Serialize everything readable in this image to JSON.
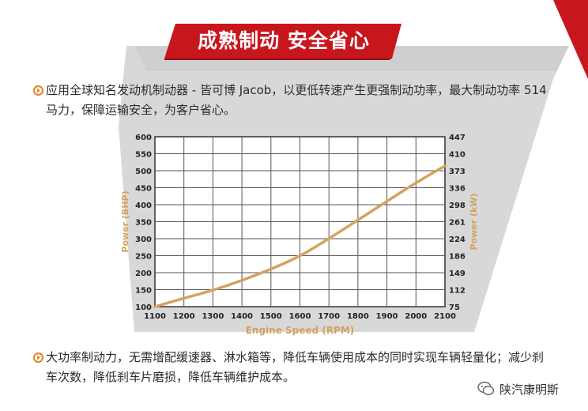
{
  "colors": {
    "brand_red": "#c8161d",
    "panel_gray": "#d9d9d9",
    "chart_line": "#d4a25f",
    "axis_label": "#d4a25f",
    "bullet": "#e08a28"
  },
  "title": "成熟制动  安全省心",
  "paragraph_1": "应用全球知名发动机制动器 - 皆可博 Jacob，以更低转速产生更强制动功率，最大制动功率 514 马力，保障运输安全，为客户省心。",
  "paragraph_2": "大功率制动力，无需增配缓速器、淋水箱等，降低车辆使用成本的同时实现车辆轻量化；减少刹车次数，降低刹车片磨损，降低车辆维护成本。",
  "watermark": {
    "icon": "wechat-icon",
    "text": "陕汽康明斯"
  },
  "chart_data": {
    "type": "line",
    "xlabel": "Engine Speed (RPM)",
    "ylabel": "Power (BHP)",
    "y2label": "Power (kW)",
    "x_ticks": [
      "1100",
      "1200",
      "1300",
      "1400",
      "1500",
      "1600",
      "1700",
      "1800",
      "1900",
      "2000",
      "2100"
    ],
    "y_ticks": [
      "100",
      "150",
      "200",
      "250",
      "300",
      "350",
      "400",
      "450",
      "500",
      "550",
      "600"
    ],
    "y2_ticks": [
      "75",
      "112",
      "149",
      "186",
      "224",
      "261",
      "298",
      "336",
      "373",
      "410",
      "447"
    ],
    "xlim": [
      1100,
      2100
    ],
    "ylim": [
      100,
      600
    ],
    "grid": true,
    "series": [
      {
        "x": [
          1100,
          1200,
          1300,
          1400,
          1500,
          1600,
          1700,
          1800,
          1900,
          2000,
          2100
        ],
        "y": [
          100,
          125,
          148,
          177,
          210,
          248,
          300,
          355,
          410,
          465,
          514
        ]
      }
    ]
  }
}
